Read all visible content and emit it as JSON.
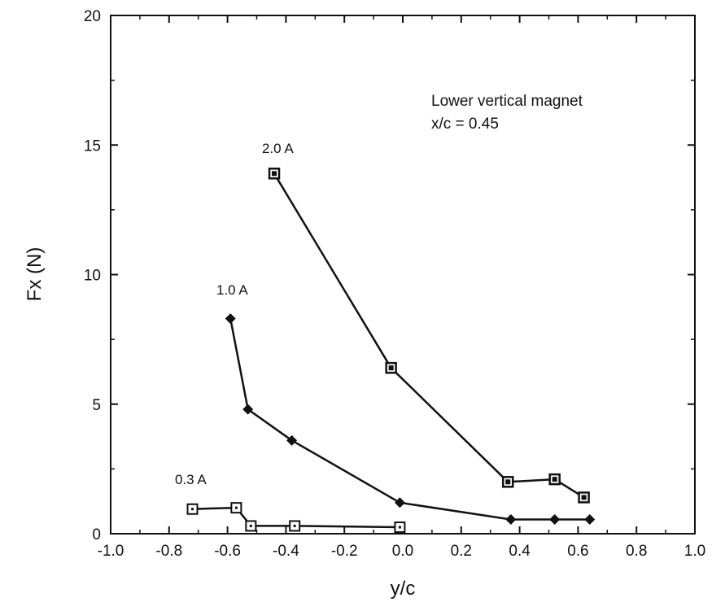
{
  "chart_data": {
    "type": "line",
    "xlabel": "y/c",
    "ylabel": "Fx (N)",
    "xlim": [
      -1.0,
      1.0
    ],
    "ylim": [
      0,
      20
    ],
    "x_ticks": [
      "-1.0",
      "-0.8",
      "-0.6",
      "-0.4",
      "-0.2",
      "0.0",
      "0.2",
      "0.4",
      "0.6",
      "0.8",
      "1.0"
    ],
    "y_ticks": [
      "0",
      "5",
      "10",
      "15",
      "20"
    ],
    "grid": false,
    "annotation": [
      "Lower vertical magnet",
      "x/c = 0.45"
    ],
    "series": [
      {
        "name": "2.0 A",
        "marker": "filled-square",
        "x": [
          -0.44,
          -0.04,
          0.36,
          0.52,
          0.62
        ],
        "y": [
          13.9,
          6.4,
          2.0,
          2.1,
          1.4
        ]
      },
      {
        "name": "1.0 A",
        "marker": "diamond",
        "x": [
          -0.59,
          -0.53,
          -0.38,
          -0.01,
          0.37,
          0.52,
          0.64
        ],
        "y": [
          8.3,
          4.8,
          3.6,
          1.2,
          0.55,
          0.55,
          0.55
        ]
      },
      {
        "name": "0.3 A",
        "marker": "open-square",
        "x": [
          -0.72,
          -0.57,
          -0.52,
          -0.37,
          -0.01
        ],
        "y": [
          0.95,
          1.0,
          0.3,
          0.3,
          0.25
        ]
      }
    ]
  }
}
